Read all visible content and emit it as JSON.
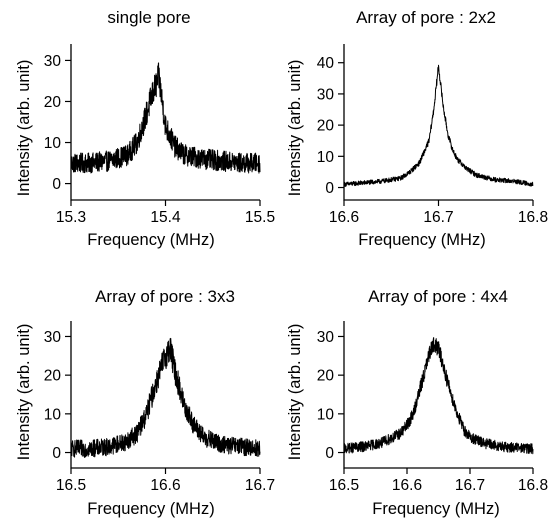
{
  "chart_data": [
    {
      "type": "line",
      "title": "single pore",
      "xlabel": "Frequency (MHz)",
      "ylabel": "Intensity (arb. unit)",
      "xlim": [
        15.3,
        15.5
      ],
      "ylim": [
        -4,
        34
      ],
      "xticks": [
        "15.3",
        "15.4",
        "15.5"
      ],
      "yticks": [
        "0",
        "10",
        "20",
        "30"
      ],
      "xtick_values": [
        15.3,
        15.4,
        15.5
      ],
      "ytick_values": [
        0,
        10,
        20,
        30
      ],
      "series": [
        {
          "x": [
            15.3,
            15.32,
            15.34,
            15.36,
            15.37,
            15.38,
            15.385,
            15.39,
            15.393,
            15.4,
            15.41,
            15.42,
            15.44,
            15.46,
            15.48,
            15.5
          ],
          "y": [
            5,
            5,
            5.5,
            7,
            10,
            17,
            21,
            24,
            26,
            14,
            9,
            7,
            6,
            5.5,
            5,
            5
          ]
        }
      ],
      "noise": 2.2
    },
    {
      "type": "line",
      "title": "Array of pore : 2x2",
      "xlabel": "Frequency (MHz)",
      "ylabel": "Intensity (arb. unit)",
      "xlim": [
        16.6,
        16.8
      ],
      "ylim": [
        -4,
        46
      ],
      "xticks": [
        "16.6",
        "16.7",
        "16.8"
      ],
      "yticks": [
        "0",
        "10",
        "20",
        "30",
        "40"
      ],
      "xtick_values": [
        16.6,
        16.7,
        16.8
      ],
      "ytick_values": [
        0,
        10,
        20,
        30,
        40
      ],
      "series": [
        {
          "x": [
            16.6,
            16.62,
            16.64,
            16.66,
            16.67,
            16.68,
            16.69,
            16.695,
            16.7,
            16.705,
            16.71,
            16.715,
            16.72,
            16.73,
            16.74,
            16.76,
            16.78,
            16.8
          ],
          "y": [
            1,
            1.5,
            2,
            3,
            5,
            8,
            15,
            25,
            39,
            26,
            17,
            12,
            9,
            6,
            4,
            2.5,
            2,
            1
          ]
        }
      ],
      "noise": 0.7
    },
    {
      "type": "line",
      "title": "Array of pore : 3x3",
      "xlabel": "Frequency (MHz)",
      "ylabel": "Intensity (arb. unit)",
      "xlim": [
        16.5,
        16.7
      ],
      "ylim": [
        -4,
        34
      ],
      "xticks": [
        "16.5",
        "16.6",
        "16.7"
      ],
      "yticks": [
        "0",
        "10",
        "20",
        "30"
      ],
      "xtick_values": [
        16.5,
        16.6,
        16.7
      ],
      "ytick_values": [
        0,
        10,
        20,
        30
      ],
      "series": [
        {
          "x": [
            16.5,
            16.52,
            16.54,
            16.56,
            16.57,
            16.58,
            16.59,
            16.6,
            16.605,
            16.61,
            16.62,
            16.63,
            16.64,
            16.66,
            16.68,
            16.7
          ],
          "y": [
            1,
            1,
            1.5,
            3,
            5,
            10,
            18,
            25,
            27,
            21,
            12,
            7,
            4,
            2,
            1.5,
            1
          ]
        }
      ],
      "noise": 2.2
    },
    {
      "type": "line",
      "title": "Array of pore : 4x4",
      "xlabel": "Frequency (MHz)",
      "ylabel": "Intensity (arb. unit)",
      "xlim": [
        16.5,
        16.8
      ],
      "ylim": [
        -4,
        34
      ],
      "xticks": [
        "16.5",
        "16.6",
        "16.7",
        "16.8"
      ],
      "yticks": [
        "0",
        "10",
        "20",
        "30"
      ],
      "xtick_values": [
        16.5,
        16.6,
        16.7,
        16.8
      ],
      "ytick_values": [
        0,
        10,
        20,
        30
      ],
      "series": [
        {
          "x": [
            16.5,
            16.53,
            16.56,
            16.59,
            16.6,
            16.61,
            16.62,
            16.63,
            16.64,
            16.65,
            16.66,
            16.67,
            16.68,
            16.69,
            16.7,
            16.72,
            16.75,
            16.8
          ],
          "y": [
            1,
            1.5,
            2.5,
            5,
            7,
            10,
            16,
            22,
            28,
            27,
            21,
            15,
            10,
            6,
            4,
            2.5,
            1.5,
            1
          ]
        }
      ],
      "noise": 1.3
    }
  ]
}
